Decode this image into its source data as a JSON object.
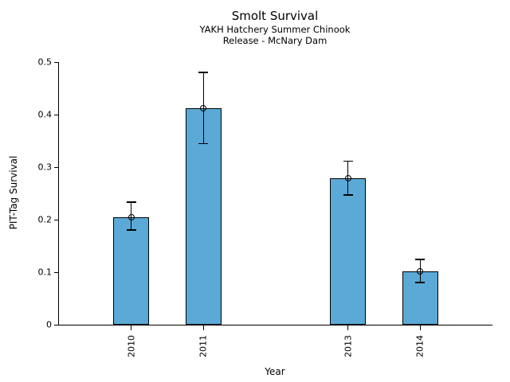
{
  "chart_data": {
    "type": "bar",
    "title": "Smolt Survival",
    "subtitle": [
      "YAKH Hatchery Summer Chinook",
      "Release - McNary Dam"
    ],
    "xlabel": "Year",
    "ylabel": "PIT-Tag Survival",
    "categories": [
      "2010",
      "2011",
      "2013",
      "2014"
    ],
    "x": [
      2010,
      2011,
      2013,
      2014
    ],
    "values": [
      0.205,
      0.412,
      0.279,
      0.102
    ],
    "error_low": [
      0.18,
      0.345,
      0.247,
      0.08
    ],
    "error_high": [
      0.233,
      0.48,
      0.311,
      0.124
    ],
    "bar_width_years": 0.5,
    "xlim": [
      2009,
      2015
    ],
    "ylim": [
      0,
      0.5
    ],
    "yticks": [
      0,
      0.1,
      0.2,
      0.3,
      0.4,
      0.5
    ],
    "ytick_labels": [
      "0",
      "0.1",
      "0.2",
      "0.3",
      "0.4",
      "0.5"
    ],
    "grid": false,
    "legend": null,
    "bar_color": "#5BA9D6",
    "edge_color": "#000000",
    "error_bar_color": "#000000",
    "marker": "open-circle",
    "background_color": "#FFFFFF"
  }
}
